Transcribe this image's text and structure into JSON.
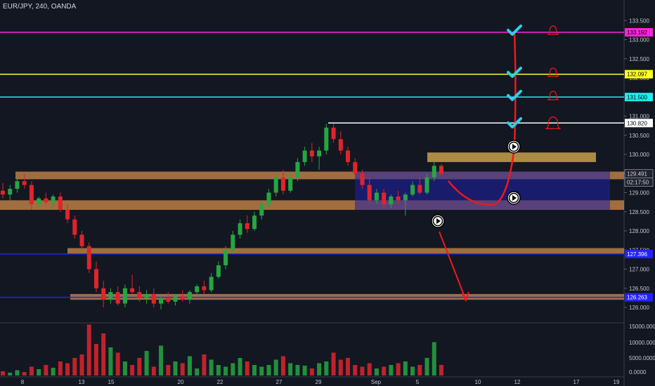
{
  "header": {
    "title": "EUR/JPY, 240, OANDA"
  },
  "colors": {
    "background": "#131722",
    "grid": "#1e2230",
    "axis_text": "#c3c6ce",
    "bull": "#26a641",
    "bear": "#e0242b",
    "zone": "#c8864a",
    "blue_zone": "#1f1fa8",
    "arrow": "#f01818",
    "check": "#2ad0e8"
  },
  "chart_data": [
    {
      "type": "candlestick",
      "title": "",
      "xlabel": "",
      "ylabel": "",
      "grid": false,
      "legend": "none",
      "ylim": [
        125.8,
        133.8
      ],
      "y_ticks": [
        "133.500",
        "133.000",
        "132.500",
        "132.000",
        "131.500",
        "131.000",
        "130.500",
        "130.000",
        "129.500",
        "129.000",
        "128.500",
        "128.000",
        "127.500",
        "127.000",
        "126.500",
        "126.000"
      ],
      "x_ticks": [
        "8",
        "13",
        "15",
        "20",
        "22",
        "27",
        "29",
        "Sep",
        "5",
        "10",
        "12",
        "17",
        "19"
      ],
      "key_levels": [
        {
          "price": 133.192,
          "label": "133.192",
          "color": "#ff22dd"
        },
        {
          "price": 132.097,
          "label": "132.097",
          "color": "#ffff22"
        },
        {
          "price": 131.5,
          "label": "131.500",
          "color": "#22eeee"
        },
        {
          "price": 130.82,
          "label": "130.820",
          "color": "#ffffff"
        },
        {
          "price": 127.396,
          "label": "127.396",
          "color": "#2222ff"
        },
        {
          "price": 126.263,
          "label": "126.263",
          "color": "#2222ff"
        }
      ],
      "price_labels": [
        {
          "price": 129.491,
          "label": "129.491"
        },
        {
          "price": 129.3,
          "label": "02:17:50"
        }
      ],
      "zones": [
        {
          "from": 129.35,
          "to": 129.55,
          "kind": "orange"
        },
        {
          "from": 128.55,
          "to": 128.8,
          "kind": "orange"
        },
        {
          "from": 127.4,
          "to": 127.55,
          "kind": "orange"
        },
        {
          "from": 126.2,
          "to": 126.35,
          "kind": "orange"
        },
        {
          "from": 129.8,
          "to": 130.05,
          "kind": "gold"
        },
        {
          "from": 128.55,
          "to": 129.55,
          "kind": "blue"
        }
      ],
      "candles": [
        [
          129.05,
          129.25,
          128.85,
          128.95
        ],
        [
          128.95,
          129.2,
          128.8,
          129.1
        ],
        [
          129.1,
          129.4,
          129.0,
          129.3
        ],
        [
          129.3,
          129.5,
          129.1,
          129.2
        ],
        [
          129.2,
          129.3,
          128.55,
          128.7
        ],
        [
          128.7,
          128.9,
          128.6,
          128.85
        ],
        [
          128.85,
          129.0,
          128.7,
          128.75
        ],
        [
          128.75,
          128.95,
          128.6,
          128.9
        ],
        [
          128.9,
          129.0,
          128.5,
          128.55
        ],
        [
          128.55,
          128.7,
          128.2,
          128.3
        ],
        [
          128.3,
          128.4,
          127.8,
          127.9
        ],
        [
          127.9,
          128.0,
          127.5,
          127.6
        ],
        [
          127.6,
          127.7,
          126.9,
          127.0
        ],
        [
          127.0,
          127.2,
          126.4,
          126.5
        ],
        [
          126.5,
          126.7,
          126.0,
          126.2
        ],
        [
          126.2,
          126.5,
          126.1,
          126.4
        ],
        [
          126.4,
          126.55,
          126.05,
          126.1
        ],
        [
          126.1,
          126.6,
          126.0,
          126.5
        ],
        [
          126.5,
          126.85,
          126.35,
          126.4
        ],
        [
          126.4,
          126.55,
          126.15,
          126.25
        ],
        [
          126.25,
          126.45,
          126.1,
          126.35
        ],
        [
          126.35,
          126.5,
          126.0,
          126.1
        ],
        [
          126.1,
          126.3,
          125.95,
          126.25
        ],
        [
          126.25,
          126.4,
          126.1,
          126.15
        ],
        [
          126.15,
          126.35,
          126.05,
          126.3
        ],
        [
          126.3,
          126.45,
          126.15,
          126.2
        ],
        [
          126.2,
          126.45,
          126.1,
          126.4
        ],
        [
          126.4,
          126.6,
          126.3,
          126.55
        ],
        [
          126.55,
          126.7,
          126.35,
          126.45
        ],
        [
          126.45,
          126.9,
          126.4,
          126.8
        ],
        [
          126.8,
          127.2,
          126.75,
          127.1
        ],
        [
          127.1,
          127.6,
          127.0,
          127.5
        ],
        [
          127.5,
          128.0,
          127.4,
          127.9
        ],
        [
          127.9,
          128.3,
          127.8,
          128.2
        ],
        [
          128.2,
          128.4,
          127.95,
          128.05
        ],
        [
          128.05,
          128.5,
          128.0,
          128.4
        ],
        [
          128.4,
          128.8,
          128.3,
          128.7
        ],
        [
          128.7,
          129.1,
          128.6,
          129.0
        ],
        [
          129.0,
          129.5,
          128.9,
          129.4
        ],
        [
          129.4,
          129.6,
          128.95,
          129.05
        ],
        [
          129.05,
          129.5,
          129.0,
          129.4
        ],
        [
          129.4,
          129.9,
          129.3,
          129.8
        ],
        [
          129.8,
          130.2,
          129.7,
          130.1
        ],
        [
          130.1,
          130.3,
          129.8,
          129.95
        ],
        [
          129.95,
          130.2,
          129.6,
          130.1
        ],
        [
          130.1,
          130.8,
          130.0,
          130.7
        ],
        [
          130.7,
          130.8,
          130.3,
          130.4
        ],
        [
          130.4,
          130.6,
          130.0,
          130.1
        ],
        [
          130.1,
          130.2,
          129.7,
          129.8
        ],
        [
          129.8,
          129.9,
          129.4,
          129.5
        ],
        [
          129.5,
          129.6,
          129.1,
          129.2
        ],
        [
          129.2,
          129.4,
          128.7,
          128.8
        ],
        [
          128.8,
          129.1,
          128.7,
          129.0
        ],
        [
          129.0,
          129.1,
          128.6,
          128.7
        ],
        [
          128.7,
          128.95,
          128.6,
          128.9
        ],
        [
          128.9,
          129.05,
          128.7,
          128.8
        ],
        [
          128.8,
          129.0,
          128.4,
          128.95
        ],
        [
          128.95,
          129.3,
          128.9,
          129.2
        ],
        [
          129.2,
          129.4,
          128.95,
          129.0
        ],
        [
          129.0,
          129.5,
          128.95,
          129.4
        ],
        [
          129.4,
          129.8,
          129.3,
          129.7
        ],
        [
          129.7,
          129.75,
          129.45,
          129.49
        ]
      ],
      "volume": {
        "ticks": [
          "15000.0000",
          "10000.0000",
          "5000.0000",
          "0.0000"
        ],
        "values": [
          1200,
          800,
          1500,
          1000,
          2500,
          1800,
          3000,
          2200,
          4000,
          3500,
          5000,
          6000,
          14500,
          9000,
          12000,
          8000,
          6500,
          4000,
          3000,
          5000,
          7000,
          2500,
          8500,
          3000,
          4000,
          3500,
          5500,
          2000,
          6000,
          4500,
          3000,
          2500,
          3500,
          5000,
          4000,
          3000,
          2500,
          3000,
          4500,
          5500,
          3500,
          3000,
          2800,
          2000,
          3500,
          4000,
          6500,
          4500,
          5000,
          3000,
          2500,
          3500,
          2000,
          2500,
          3000,
          3500,
          4000,
          2500,
          3000,
          5000,
          9500,
          3000
        ]
      },
      "projection": {
        "from": [
          129.45,
          129.3
        ],
        "curve": "down to the blue zone, then up through the key levels",
        "down_arrow_target": "126.263"
      }
    }
  ]
}
